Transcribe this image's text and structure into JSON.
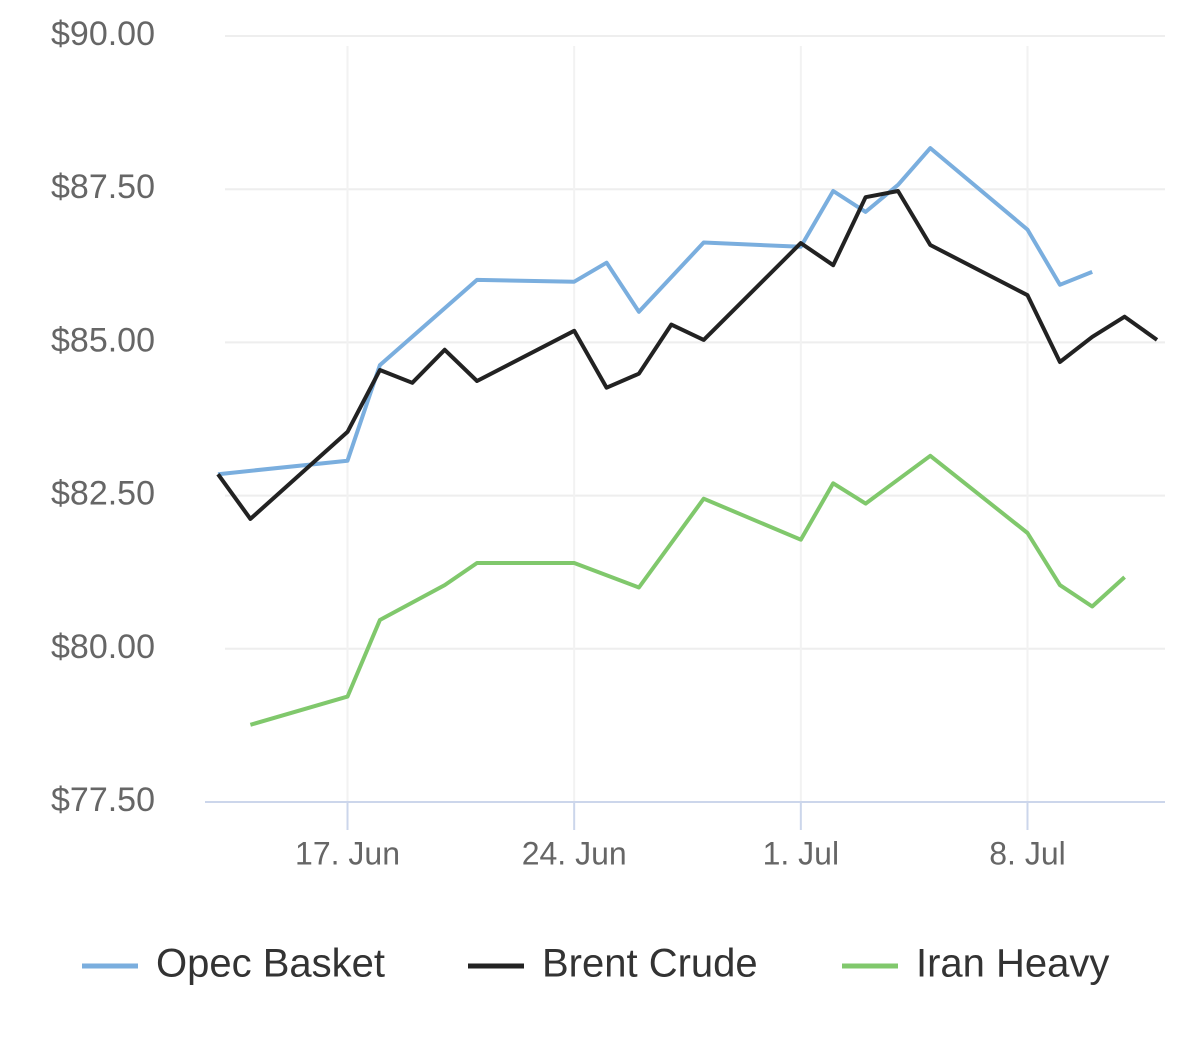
{
  "chart_data": {
    "type": "line",
    "xlim": [
      "13. Jun",
      "12. Jul"
    ],
    "xticks": [
      "17. Jun",
      "24. Jun",
      "1. Jul",
      "8. Jul"
    ],
    "ylim": [
      77.5,
      90
    ],
    "yticks": [
      {
        "value": 77.5,
        "label": "$77.50"
      },
      {
        "value": 80,
        "label": "$80.00"
      },
      {
        "value": 82.5,
        "label": "$82.50"
      },
      {
        "value": 85,
        "label": "$85.00"
      },
      {
        "value": 87.5,
        "label": "$87.50"
      },
      {
        "value": 90,
        "label": "$90.00"
      }
    ],
    "grid": true,
    "legend": "bottom",
    "series": [
      {
        "name": "Opec Basket",
        "color": "#7aaede",
        "x": [
          "13. Jun",
          "17. Jun",
          "18. Jun",
          "21. Jun",
          "24. Jun",
          "25. Jun",
          "26. Jun",
          "28. Jun",
          "1. Jul",
          "2. Jul",
          "3. Jul",
          "4. Jul",
          "5. Jul",
          "8. Jul",
          "9. Jul",
          "10. Jul"
        ],
        "values": [
          82.85,
          83.07,
          84.63,
          86.02,
          85.99,
          86.3,
          85.5,
          86.63,
          86.56,
          87.47,
          87.13,
          87.57,
          88.17,
          86.84,
          85.94,
          86.15
        ]
      },
      {
        "name": "Brent Crude",
        "color": "#222222",
        "x": [
          "13. Jun",
          "14. Jun",
          "17. Jun",
          "18. Jun",
          "19. Jun",
          "20. Jun",
          "21. Jun",
          "24. Jun",
          "25. Jun",
          "26. Jun",
          "27. Jun",
          "28. Jun",
          "1. Jul",
          "2. Jul",
          "3. Jul",
          "4. Jul",
          "5. Jul",
          "8. Jul",
          "9. Jul",
          "10. Jul",
          "11. Jul",
          "12. Jul"
        ],
        "values": [
          82.85,
          82.12,
          83.54,
          84.55,
          84.34,
          84.88,
          84.37,
          85.19,
          84.26,
          84.49,
          85.29,
          85.04,
          86.62,
          86.26,
          87.37,
          87.47,
          86.59,
          85.77,
          84.68,
          85.09,
          85.42,
          85.04
        ]
      },
      {
        "name": "Iran Heavy",
        "color": "#80c86c",
        "x": [
          "14. Jun",
          "17. Jun",
          "18. Jun",
          "20. Jun",
          "21. Jun",
          "24. Jun",
          "26. Jun",
          "28. Jun",
          "1. Jul",
          "2. Jul",
          "3. Jul",
          "5. Jul",
          "8. Jul",
          "9. Jul",
          "10. Jul",
          "11. Jul"
        ],
        "values": [
          78.76,
          79.22,
          80.47,
          81.04,
          81.4,
          81.4,
          81.0,
          82.45,
          81.78,
          82.7,
          82.37,
          83.15,
          81.89,
          81.04,
          80.69,
          81.17
        ]
      }
    ]
  }
}
